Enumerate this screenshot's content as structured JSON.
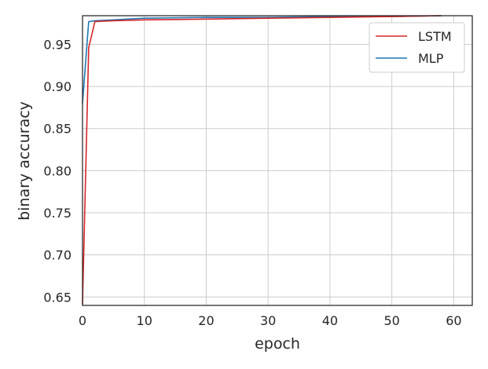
{
  "chart_data": {
    "type": "line",
    "xlabel": "epoch",
    "ylabel": "binary accuracy",
    "xlim": [
      0,
      63
    ],
    "ylim": [
      0.64,
      0.984
    ],
    "xticks": [
      0,
      10,
      20,
      30,
      40,
      50,
      60
    ],
    "yticks": [
      0.65,
      0.7,
      0.75,
      0.8,
      0.85,
      0.9,
      0.95
    ],
    "xtick_labels": [
      "0",
      "10",
      "20",
      "30",
      "40",
      "50",
      "60"
    ],
    "ytick_labels": [
      "0.65",
      "0.70",
      "0.75",
      "0.80",
      "0.85",
      "0.90",
      "0.95"
    ],
    "grid": true,
    "legend_position": "top-right",
    "series": [
      {
        "name": "LSTM",
        "color": "#d62728",
        "x": [
          0,
          1,
          2,
          5,
          10,
          20,
          30,
          40,
          50,
          58
        ],
        "y": [
          0.641,
          0.946,
          0.977,
          0.978,
          0.979,
          0.98,
          0.981,
          0.982,
          0.983,
          0.984
        ]
      },
      {
        "name": "MLP",
        "color": "#1f77b4",
        "x": [
          0,
          1,
          2,
          5,
          10,
          20,
          30,
          40,
          50,
          58
        ],
        "y": [
          0.88,
          0.977,
          0.978,
          0.979,
          0.981,
          0.982,
          0.982,
          0.983,
          0.983,
          0.984
        ]
      }
    ]
  }
}
